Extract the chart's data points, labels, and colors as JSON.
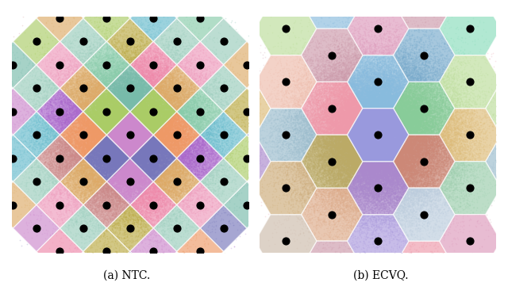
{
  "subtitle_a": "(a) NTC.",
  "subtitle_b": "(b) ECVQ.",
  "n_samples": 120000,
  "sigma": 1.7,
  "seed": 42,
  "ntc_cell_size": 1.4,
  "ntc_colors_map": {
    "0,0": "#cc88cc",
    "1,0": "#aacc66",
    "0,1": "#aacc66",
    "-1,0": "#7777bb",
    "0,-1": "#7777bb",
    "1,1": "#77bbaa",
    "-1,1": "#ee9966",
    "1,-1": "#ee9966",
    "-1,-1": "#cc88cc",
    "2,0": "#ddaa66",
    "0,2": "#ddaa66",
    "2,1": "#ee88aa",
    "1,2": "#88ccaa",
    "-1,2": "#aa66cc",
    "-2,1": "#cc8888",
    "-2,0": "#ddaa66",
    "0,-2": "#ddaa66",
    "2,-1": "#88ccaa",
    "-1,-2": "#ee88aa",
    "1,-2": "#aa66cc",
    "-2,-1": "#cc8888",
    "2,2": "#bbaa44",
    "-2,2": "#66bbcc",
    "2,-2": "#66bbcc",
    "-2,-2": "#bbaa44",
    "3,0": "#ee99bb",
    "0,3": "#ee99bb",
    "-3,0": "#ee99bb",
    "0,-3": "#ee99bb",
    "3,1": "#99ccbb",
    "3,-1": "#99ccbb",
    "1,3": "#99ccbb",
    "-1,3": "#99ccbb",
    "-3,1": "#99ccbb",
    "-3,-1": "#99ccbb",
    "1,-3": "#99ccbb",
    "-1,-3": "#99ccbb"
  },
  "ecvq_colors_map": {
    "0,0": "#9999dd",
    "1,0": "#88cc99",
    "-1,1": "#ee99aa",
    "0,1": "#88bbdd",
    "1,-1": "#cc8877",
    "-1,0": "#bbaa66",
    "0,-1": "#aa88cc",
    "2,0": "#bbdd99",
    "0,2": "#dd99bb",
    "-2,1": "#99bbcc",
    "2,-1": "#ddbb77",
    "-1,2": "#cc99aa",
    "1,1": "#77aacc",
    "-2,2": "#eebbaa",
    "2,-2": "#99ccaa",
    "-2,0": "#ccaa77",
    "0,-2": "#aa99dd",
    "2,1": "#88ddbb",
    "-1,-1": "#ddaa88",
    "1,-2": "#bbccdd",
    "-2,-1": "#ccbbaa"
  },
  "point_alpha": 0.25,
  "point_size": 1.5,
  "bg_color": "#ffffff",
  "dot_color": "#000000",
  "dot_size": 40,
  "hex_size": 1.3,
  "xlim": [
    -5.0,
    5.0
  ],
  "ylim": [
    -5.0,
    5.0
  ]
}
